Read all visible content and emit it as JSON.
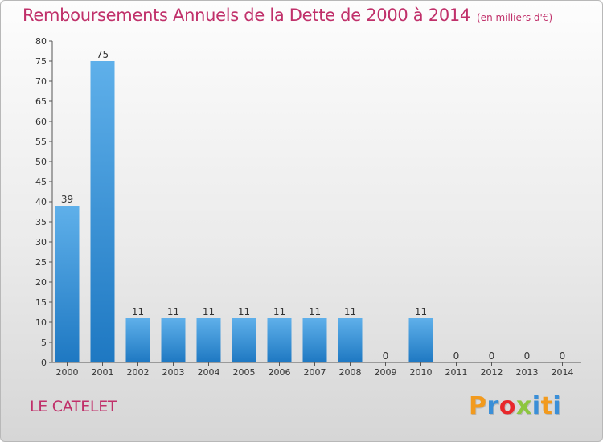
{
  "title": "Remboursements Annuels de la Dette de 2000 à 2014",
  "unit": "(en milliers d'€)",
  "commune": "LE CATELET",
  "brand": {
    "letters": [
      "P",
      "r",
      "o",
      "x",
      "i",
      "t",
      "i"
    ],
    "colors": [
      "#f29a1d",
      "#3a8fd8",
      "#e8282b",
      "#8dc63f",
      "#3a8fd8",
      "#f29a1d",
      "#3a8fd8"
    ]
  },
  "colors": {
    "bar_light": "#5fb0ea",
    "bar_dark": "#1e78c2",
    "title": "#c0306a"
  },
  "chart_data": {
    "type": "bar",
    "categories": [
      "2000",
      "2001",
      "2002",
      "2003",
      "2004",
      "2005",
      "2006",
      "2007",
      "2008",
      "2009",
      "2010",
      "2011",
      "2012",
      "2013",
      "2014"
    ],
    "values": [
      39,
      75,
      11,
      11,
      11,
      11,
      11,
      11,
      11,
      0,
      11,
      0,
      0,
      0,
      0
    ],
    "title": "Remboursements Annuels de la Dette de 2000 à 2014",
    "xlabel": "",
    "ylabel": "",
    "ylim": [
      0,
      80
    ],
    "yticks": [
      0,
      5,
      10,
      15,
      20,
      25,
      30,
      35,
      40,
      45,
      50,
      55,
      60,
      65,
      70,
      75,
      80
    ],
    "grid": false,
    "data_labels": true
  }
}
